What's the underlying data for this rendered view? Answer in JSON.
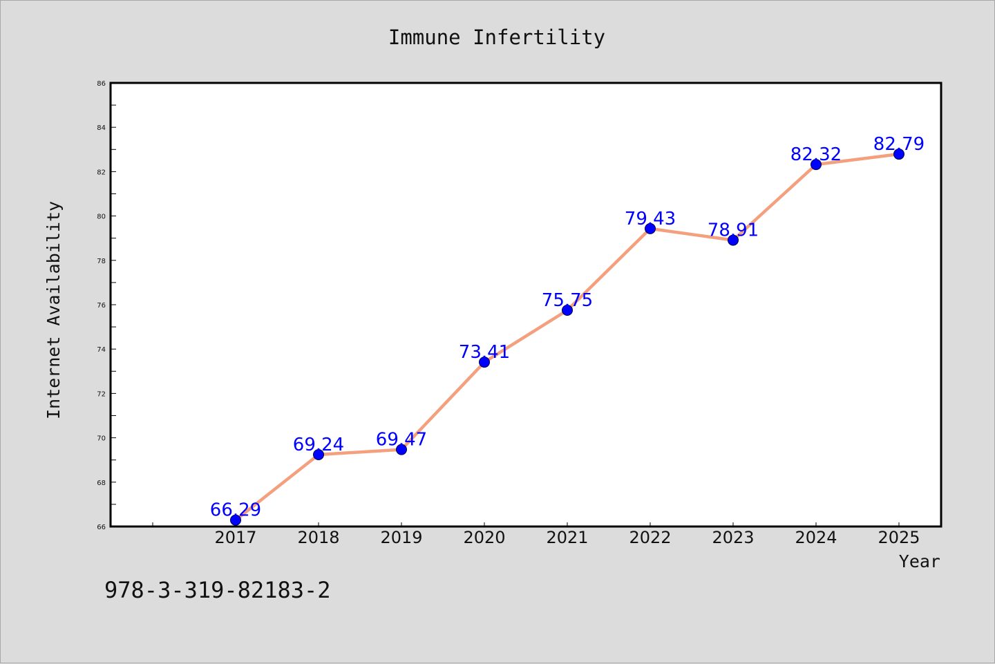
{
  "chart_data": {
    "type": "line",
    "title": "Immune Infertility",
    "xlabel": "Year",
    "ylabel": "Internet Availability",
    "x": [
      "2017",
      "2018",
      "2019",
      "2020",
      "2021",
      "2022",
      "2023",
      "2024",
      "2025"
    ],
    "series": [
      {
        "values": [
          66.29,
          69.24,
          69.47,
          73.41,
          75.75,
          79.43,
          78.91,
          82.32,
          82.79
        ]
      }
    ],
    "data_labels": [
      "66.29",
      "69.24",
      "69.47",
      "73.41",
      "75.75",
      "79.43",
      "78.91",
      "82.32",
      "82.79"
    ],
    "ylim": [
      66,
      86
    ],
    "yticks": [
      66,
      68,
      70,
      72,
      74,
      76,
      78,
      80,
      82,
      84,
      86
    ],
    "grid": false,
    "legend": "none",
    "line_color": "#f4a07e",
    "marker_color": "#0000ff",
    "label_color": "#0000ff",
    "background": "#dcdcdc",
    "plot_background": "#ffffff"
  },
  "footer": {
    "isbn": "978-3-319-82183-2"
  }
}
